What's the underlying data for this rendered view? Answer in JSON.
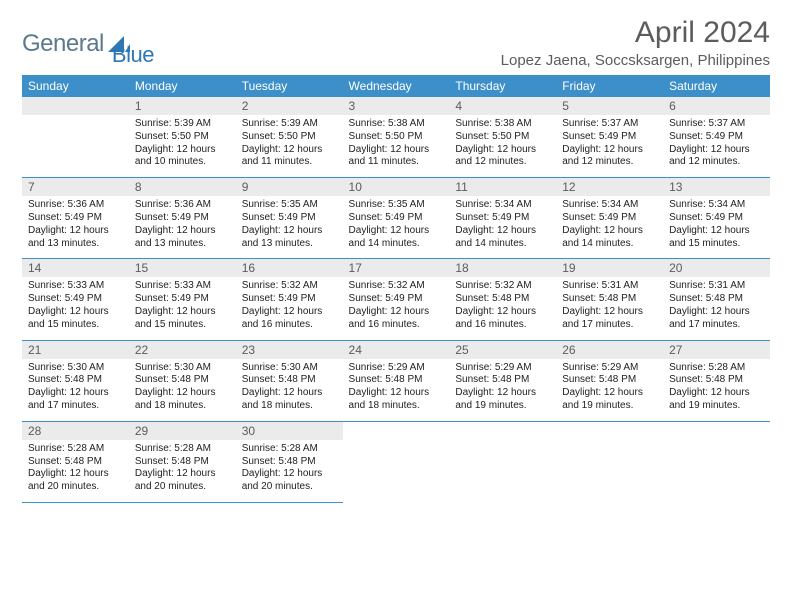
{
  "brand": {
    "part1": "General",
    "part2": "Blue"
  },
  "title": "April 2024",
  "location": "Lopez Jaena, Soccsksargen, Philippines",
  "colors": {
    "header_bg": "#3d8fc9",
    "daynum_bg": "#ebebeb",
    "text_muted": "#5c5c5c"
  },
  "weekdays": [
    "Sunday",
    "Monday",
    "Tuesday",
    "Wednesday",
    "Thursday",
    "Friday",
    "Saturday"
  ],
  "weeks": [
    [
      {
        "blank": true
      },
      {
        "n": "1",
        "sr": "Sunrise: 5:39 AM",
        "ss": "Sunset: 5:50 PM",
        "d1": "Daylight: 12 hours",
        "d2": "and 10 minutes."
      },
      {
        "n": "2",
        "sr": "Sunrise: 5:39 AM",
        "ss": "Sunset: 5:50 PM",
        "d1": "Daylight: 12 hours",
        "d2": "and 11 minutes."
      },
      {
        "n": "3",
        "sr": "Sunrise: 5:38 AM",
        "ss": "Sunset: 5:50 PM",
        "d1": "Daylight: 12 hours",
        "d2": "and 11 minutes."
      },
      {
        "n": "4",
        "sr": "Sunrise: 5:38 AM",
        "ss": "Sunset: 5:50 PM",
        "d1": "Daylight: 12 hours",
        "d2": "and 12 minutes."
      },
      {
        "n": "5",
        "sr": "Sunrise: 5:37 AM",
        "ss": "Sunset: 5:49 PM",
        "d1": "Daylight: 12 hours",
        "d2": "and 12 minutes."
      },
      {
        "n": "6",
        "sr": "Sunrise: 5:37 AM",
        "ss": "Sunset: 5:49 PM",
        "d1": "Daylight: 12 hours",
        "d2": "and 12 minutes."
      }
    ],
    [
      {
        "n": "7",
        "sr": "Sunrise: 5:36 AM",
        "ss": "Sunset: 5:49 PM",
        "d1": "Daylight: 12 hours",
        "d2": "and 13 minutes."
      },
      {
        "n": "8",
        "sr": "Sunrise: 5:36 AM",
        "ss": "Sunset: 5:49 PM",
        "d1": "Daylight: 12 hours",
        "d2": "and 13 minutes."
      },
      {
        "n": "9",
        "sr": "Sunrise: 5:35 AM",
        "ss": "Sunset: 5:49 PM",
        "d1": "Daylight: 12 hours",
        "d2": "and 13 minutes."
      },
      {
        "n": "10",
        "sr": "Sunrise: 5:35 AM",
        "ss": "Sunset: 5:49 PM",
        "d1": "Daylight: 12 hours",
        "d2": "and 14 minutes."
      },
      {
        "n": "11",
        "sr": "Sunrise: 5:34 AM",
        "ss": "Sunset: 5:49 PM",
        "d1": "Daylight: 12 hours",
        "d2": "and 14 minutes."
      },
      {
        "n": "12",
        "sr": "Sunrise: 5:34 AM",
        "ss": "Sunset: 5:49 PM",
        "d1": "Daylight: 12 hours",
        "d2": "and 14 minutes."
      },
      {
        "n": "13",
        "sr": "Sunrise: 5:34 AM",
        "ss": "Sunset: 5:49 PM",
        "d1": "Daylight: 12 hours",
        "d2": "and 15 minutes."
      }
    ],
    [
      {
        "n": "14",
        "sr": "Sunrise: 5:33 AM",
        "ss": "Sunset: 5:49 PM",
        "d1": "Daylight: 12 hours",
        "d2": "and 15 minutes."
      },
      {
        "n": "15",
        "sr": "Sunrise: 5:33 AM",
        "ss": "Sunset: 5:49 PM",
        "d1": "Daylight: 12 hours",
        "d2": "and 15 minutes."
      },
      {
        "n": "16",
        "sr": "Sunrise: 5:32 AM",
        "ss": "Sunset: 5:49 PM",
        "d1": "Daylight: 12 hours",
        "d2": "and 16 minutes."
      },
      {
        "n": "17",
        "sr": "Sunrise: 5:32 AM",
        "ss": "Sunset: 5:49 PM",
        "d1": "Daylight: 12 hours",
        "d2": "and 16 minutes."
      },
      {
        "n": "18",
        "sr": "Sunrise: 5:32 AM",
        "ss": "Sunset: 5:48 PM",
        "d1": "Daylight: 12 hours",
        "d2": "and 16 minutes."
      },
      {
        "n": "19",
        "sr": "Sunrise: 5:31 AM",
        "ss": "Sunset: 5:48 PM",
        "d1": "Daylight: 12 hours",
        "d2": "and 17 minutes."
      },
      {
        "n": "20",
        "sr": "Sunrise: 5:31 AM",
        "ss": "Sunset: 5:48 PM",
        "d1": "Daylight: 12 hours",
        "d2": "and 17 minutes."
      }
    ],
    [
      {
        "n": "21",
        "sr": "Sunrise: 5:30 AM",
        "ss": "Sunset: 5:48 PM",
        "d1": "Daylight: 12 hours",
        "d2": "and 17 minutes."
      },
      {
        "n": "22",
        "sr": "Sunrise: 5:30 AM",
        "ss": "Sunset: 5:48 PM",
        "d1": "Daylight: 12 hours",
        "d2": "and 18 minutes."
      },
      {
        "n": "23",
        "sr": "Sunrise: 5:30 AM",
        "ss": "Sunset: 5:48 PM",
        "d1": "Daylight: 12 hours",
        "d2": "and 18 minutes."
      },
      {
        "n": "24",
        "sr": "Sunrise: 5:29 AM",
        "ss": "Sunset: 5:48 PM",
        "d1": "Daylight: 12 hours",
        "d2": "and 18 minutes."
      },
      {
        "n": "25",
        "sr": "Sunrise: 5:29 AM",
        "ss": "Sunset: 5:48 PM",
        "d1": "Daylight: 12 hours",
        "d2": "and 19 minutes."
      },
      {
        "n": "26",
        "sr": "Sunrise: 5:29 AM",
        "ss": "Sunset: 5:48 PM",
        "d1": "Daylight: 12 hours",
        "d2": "and 19 minutes."
      },
      {
        "n": "27",
        "sr": "Sunrise: 5:28 AM",
        "ss": "Sunset: 5:48 PM",
        "d1": "Daylight: 12 hours",
        "d2": "and 19 minutes."
      }
    ],
    [
      {
        "n": "28",
        "sr": "Sunrise: 5:28 AM",
        "ss": "Sunset: 5:48 PM",
        "d1": "Daylight: 12 hours",
        "d2": "and 20 minutes."
      },
      {
        "n": "29",
        "sr": "Sunrise: 5:28 AM",
        "ss": "Sunset: 5:48 PM",
        "d1": "Daylight: 12 hours",
        "d2": "and 20 minutes."
      },
      {
        "n": "30",
        "sr": "Sunrise: 5:28 AM",
        "ss": "Sunset: 5:48 PM",
        "d1": "Daylight: 12 hours",
        "d2": "and 20 minutes."
      },
      {
        "trailing": true
      },
      {
        "trailing": true
      },
      {
        "trailing": true
      },
      {
        "trailing": true
      }
    ]
  ]
}
